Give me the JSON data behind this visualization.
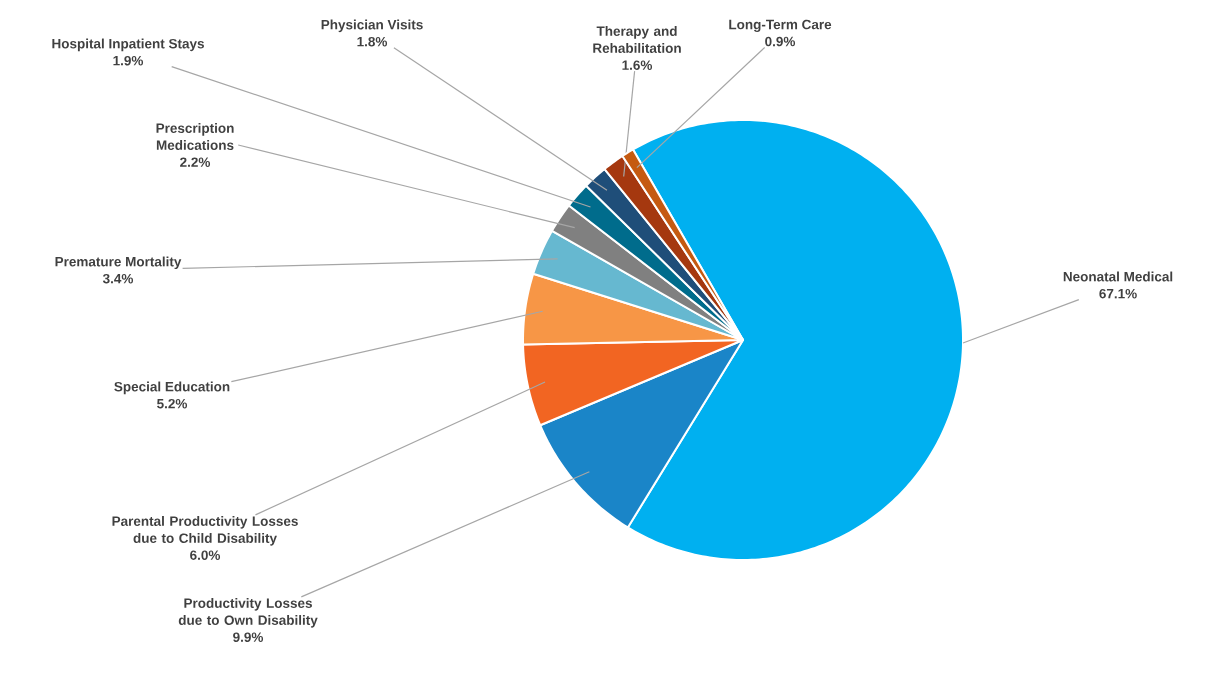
{
  "chart_data": {
    "type": "pie",
    "categories": [
      "Neonatal Medical",
      "Productivity Losses due to Own Disability",
      "Parental Productivity Losses due to Child Disability",
      "Special Education",
      "Premature Mortality",
      "Prescription Medications",
      "Hospital Inpatient Stays",
      "Physician Visits",
      "Therapy and Rehabilitation",
      "Long-Term Care"
    ],
    "values": [
      67.1,
      9.9,
      6.0,
      5.2,
      3.4,
      2.2,
      1.9,
      1.8,
      1.6,
      0.9
    ],
    "value_labels": [
      "67.1%",
      "9.9%",
      "6.0%",
      "5.2%",
      "3.4%",
      "2.2%",
      "1.9%",
      "1.8%",
      "1.6%",
      "0.9%"
    ],
    "colors": [
      "#00b0f0",
      "#1a85c8",
      "#f26522",
      "#f79646",
      "#66b8d0",
      "#808080",
      "#006c8c",
      "#1f4e79",
      "#a5380f",
      "#c55a11"
    ],
    "legend": false
  }
}
